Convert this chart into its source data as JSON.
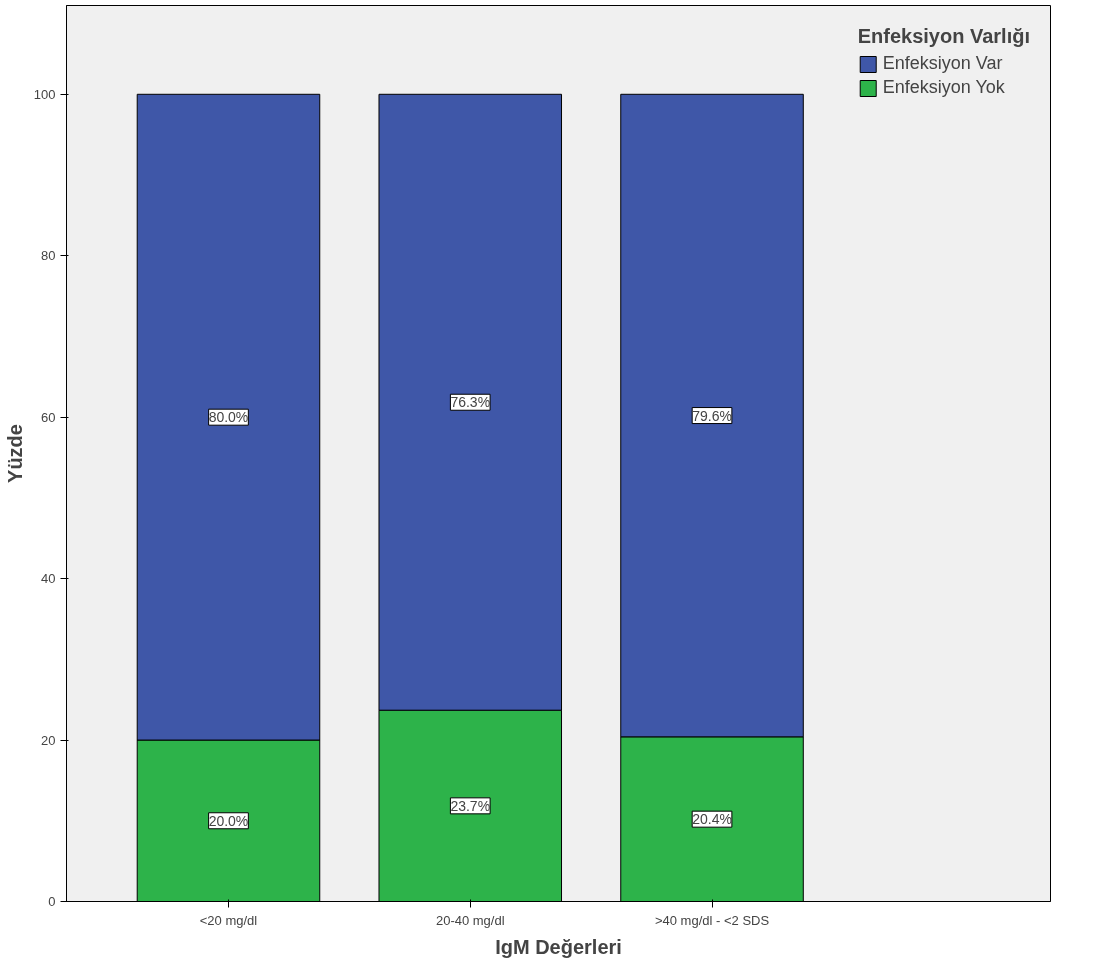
{
  "chart_data": {
    "type": "bar",
    "stacked": true,
    "xlabel": "IgM Değerleri",
    "ylabel": "Yüzde",
    "legend_title": "Enfeksiyon Varlığı",
    "categories": [
      "<20 mg/dl",
      "20-40 mg/dl",
      ">40 mg/dl - <2 SDS"
    ],
    "series": [
      {
        "name": "Enfeksiyon Yok",
        "color": "#2db34a",
        "values": [
          20.0,
          23.7,
          20.4
        ],
        "value_labels": [
          "20.0%",
          "23.7%",
          "20.4%"
        ]
      },
      {
        "name": "Enfeksiyon Var",
        "color": "#3f57a8",
        "values": [
          80.0,
          76.3,
          79.6
        ],
        "value_labels": [
          "80.0%",
          "76.3%",
          "79.6%"
        ]
      }
    ],
    "ylim": [
      0,
      111
    ],
    "yticks": [
      0,
      20,
      40,
      60,
      80,
      100
    ],
    "grid": false,
    "legend": "top right"
  }
}
